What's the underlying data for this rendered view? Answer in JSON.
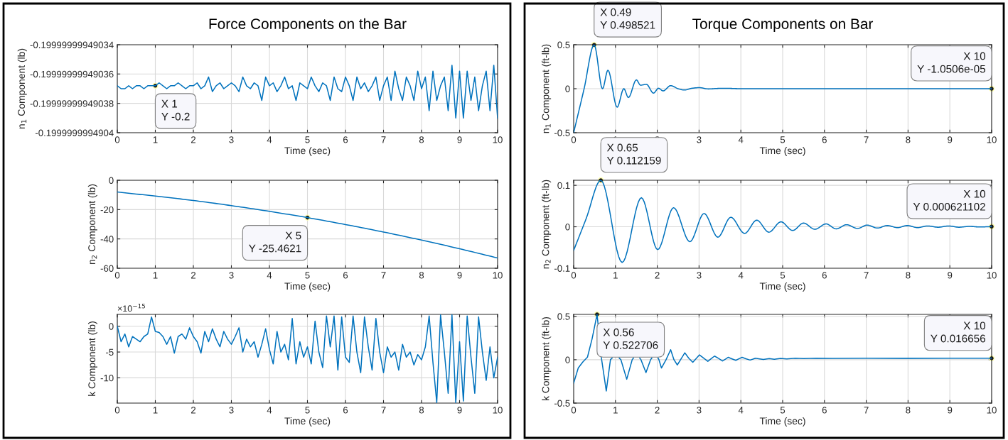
{
  "chart_data": [
    {
      "type": "line",
      "title": "Force Components on the Bar",
      "xlabel": "Time (sec)",
      "ylabel": "n$_{1}$ Component (lb)",
      "color": "#0072bd",
      "grid": true,
      "xlim": [
        0,
        10
      ],
      "xticks": [
        0,
        1,
        2,
        3,
        4,
        5,
        6,
        7,
        8,
        9,
        10
      ],
      "ylim": [
        -0.1999999994904,
        -0.19999999949034
      ],
      "yticks": [
        {
          "value": -0.1999999994904,
          "label": "-0.1999999994904"
        },
        {
          "value": -0.19999999949038,
          "label": "-0.19999999949038"
        },
        {
          "value": -0.19999999949036,
          "label": "-0.19999999949036"
        },
        {
          "value": -0.19999999949034,
          "label": "-0.19999999949034"
        }
      ],
      "x": [
        0,
        0.1,
        0.2,
        0.3,
        0.4,
        0.5,
        0.6,
        0.7,
        0.8,
        0.9,
        1,
        1.1,
        1.2,
        1.3,
        1.4,
        1.5,
        1.6,
        1.7,
        1.8,
        1.9,
        2,
        2.1,
        2.2,
        2.3,
        2.4,
        2.5,
        2.6,
        2.7,
        2.8,
        2.9,
        3,
        3.1,
        3.2,
        3.3,
        3.4,
        3.5,
        3.6,
        3.7,
        3.8,
        3.9,
        4,
        4.1,
        4.2,
        4.3,
        4.4,
        4.5,
        4.6,
        4.7,
        4.8,
        4.9,
        5,
        5.1,
        5.2,
        5.3,
        5.4,
        5.5,
        5.6,
        5.7,
        5.8,
        5.9,
        6,
        6.1,
        6.2,
        6.3,
        6.4,
        6.5,
        6.6,
        6.7,
        6.8,
        6.9,
        7,
        7.1,
        7.2,
        7.3,
        7.4,
        7.5,
        7.6,
        7.7,
        7.8,
        7.9,
        8,
        8.1,
        8.2,
        8.3,
        8.4,
        8.5,
        8.6,
        8.7,
        8.8,
        8.9,
        9,
        9.1,
        9.2,
        9.3,
        9.4,
        9.5,
        9.6,
        9.7,
        9.8,
        9.9,
        10
      ],
      "values": [
        -0.199999999490368,
        -0.19999999949037,
        -0.19999999949037,
        -0.199999999490368,
        -0.19999999949037,
        -0.199999999490368,
        -0.199999999490368,
        -0.19999999949037,
        -0.199999999490368,
        -0.199999999490368,
        -0.199999999490368,
        -0.199999999490366,
        -0.199999999490368,
        -0.19999999949037,
        -0.199999999490368,
        -0.199999999490368,
        -0.199999999490366,
        -0.199999999490368,
        -0.19999999949037,
        -0.199999999490368,
        -0.199999999490368,
        -0.199999999490366,
        -0.19999999949037,
        -0.199999999490368,
        -0.199999999490362,
        -0.199999999490372,
        -0.199999999490368,
        -0.199999999490366,
        -0.19999999949037,
        -0.199999999490368,
        -0.199999999490366,
        -0.199999999490368,
        -0.199999999490372,
        -0.199999999490362,
        -0.199999999490368,
        -0.19999999949037,
        -0.199999999490366,
        -0.199999999490368,
        -0.199999999490378,
        -0.199999999490362,
        -0.199999999490368,
        -0.199999999490366,
        -0.199999999490372,
        -0.199999999490368,
        -0.199999999490362,
        -0.19999999949037,
        -0.199999999490368,
        -0.199999999490378,
        -0.199999999490366,
        -0.199999999490368,
        -0.19999999949037,
        -0.199999999490362,
        -0.199999999490368,
        -0.199999999490372,
        -0.199999999490366,
        -0.199999999490368,
        -0.199999999490378,
        -0.199999999490362,
        -0.19999999949037,
        -0.199999999490372,
        -0.199999999490362,
        -0.199999999490368,
        -0.199999999490378,
        -0.199999999490362,
        -0.19999999949037,
        -0.199999999490366,
        -0.199999999490372,
        -0.199999999490368,
        -0.199999999490362,
        -0.199999999490378,
        -0.199999999490368,
        -0.199999999490362,
        -0.199999999490378,
        -0.199999999490358,
        -0.19999999949037,
        -0.199999999490378,
        -0.199999999490362,
        -0.199999999490368,
        -0.199999999490378,
        -0.199999999490358,
        -0.19999999949037,
        -0.199999999490362,
        -0.199999999490385,
        -0.199999999490358,
        -0.199999999490378,
        -0.199999999490368,
        -0.199999999490362,
        -0.199999999490385,
        -0.199999999490354,
        -0.19999999949039,
        -0.199999999490358,
        -0.19999999949039,
        -0.199999999490358,
        -0.199999999490378,
        -0.199999999490362,
        -0.199999999490385,
        -0.199999999490368,
        -0.199999999490358,
        -0.199999999490385,
        -0.199999999490354,
        -0.19999999949039
      ],
      "annotations": [
        {
          "text": "X 1\nY -0.2",
          "x": 1,
          "y": -0.199999999490368
        }
      ]
    },
    {
      "type": "line",
      "xlabel": "Time (sec)",
      "ylabel": "n$_{2}$ Component (lb)",
      "color": "#0072bd",
      "grid": true,
      "xlim": [
        0,
        10
      ],
      "xticks": [
        0,
        1,
        2,
        3,
        4,
        5,
        6,
        7,
        8,
        9,
        10
      ],
      "ylim": [
        -60,
        0
      ],
      "yticks": [
        -60,
        -40,
        -20,
        0
      ],
      "x": [
        0,
        1,
        2,
        3,
        4,
        5,
        6,
        7,
        8,
        9,
        10
      ],
      "values": [
        -8,
        -10.8,
        -13.8,
        -17.3,
        -21.2,
        -25.4621,
        -30.2,
        -35.3,
        -40.8,
        -46.7,
        -53
      ],
      "annotations": [
        {
          "text": "X 5\nY -25.4621",
          "x": 5,
          "y": -25.4621
        }
      ]
    },
    {
      "type": "line",
      "xlabel": "Time (sec)",
      "ylabel": "k Component (lb)",
      "color": "#0072bd",
      "grid": true,
      "xlim": [
        0,
        10
      ],
      "xticks": [
        0,
        1,
        2,
        3,
        4,
        5,
        6,
        7,
        8,
        9,
        10
      ],
      "ylim": [
        -14.9,
        2.3
      ],
      "yticks": [
        -10,
        -5,
        0
      ],
      "x": [
        0,
        0.1,
        0.2,
        0.3,
        0.4,
        0.5,
        0.6,
        0.7,
        0.8,
        0.9,
        1,
        1.1,
        1.2,
        1.3,
        1.4,
        1.5,
        1.6,
        1.7,
        1.8,
        1.9,
        2,
        2.1,
        2.2,
        2.3,
        2.4,
        2.5,
        2.6,
        2.7,
        2.8,
        2.9,
        3,
        3.1,
        3.2,
        3.3,
        3.4,
        3.5,
        3.6,
        3.7,
        3.8,
        3.9,
        4,
        4.1,
        4.2,
        4.3,
        4.4,
        4.5,
        4.6,
        4.7,
        4.8,
        4.9,
        5,
        5.1,
        5.2,
        5.3,
        5.4,
        5.5,
        5.6,
        5.7,
        5.8,
        5.9,
        6,
        6.1,
        6.2,
        6.3,
        6.4,
        6.5,
        6.6,
        6.7,
        6.8,
        6.9,
        7,
        7.1,
        7.2,
        7.3,
        7.4,
        7.5,
        7.6,
        7.7,
        7.8,
        7.9,
        8,
        8.1,
        8.2,
        8.3,
        8.4,
        8.5,
        8.6,
        8.7,
        8.8,
        8.9,
        9,
        9.1,
        9.2,
        9.3,
        9.4,
        9.5,
        9.6,
        9.7,
        9.8,
        9.9,
        10
      ],
      "values": [
        0,
        -3,
        -1.5,
        -4,
        -2,
        -2.5,
        -3,
        -2,
        -1.5,
        1.8,
        -1,
        -1.2,
        -2,
        -3.5,
        -2,
        -5.2,
        -2,
        -1.5,
        -2.5,
        -0.3,
        -2,
        -3,
        -5.2,
        -1,
        -3,
        -0.5,
        -2.5,
        -4,
        -1,
        -2.5,
        -3.5,
        -2,
        -0.3,
        -5,
        -2.5,
        -4,
        -3,
        -6,
        -3.5,
        -0.5,
        -4.5,
        -7.3,
        -1,
        -5,
        -3.5,
        -6.5,
        1.5,
        -7.3,
        -3,
        -6,
        -4,
        -7.3,
        1,
        -5,
        -8,
        2,
        -4,
        2,
        -8.5,
        1.8,
        -6,
        -7,
        2,
        -5,
        -9,
        1.8,
        -4,
        -8.5,
        1.5,
        -5,
        -9,
        -4,
        -6,
        -5,
        -8.5,
        -3.5,
        -6,
        -5,
        -7.5,
        -5.5,
        -6.5,
        -4,
        2,
        -7,
        -14.8,
        2.2,
        -5,
        -13,
        2.2,
        -14.8,
        -3,
        -14.5,
        2,
        -6,
        -13,
        1.8,
        -5,
        -10.5,
        -4,
        -10,
        -6
      ],
      "annotations": [
        "×10$^{−15}$"
      ]
    },
    {
      "type": "line",
      "title": "Torque Components on Bar",
      "xlabel": "Time (sec)",
      "ylabel": "n$_{1}$ Component (ft-lb)",
      "color": "#0072bd",
      "grid": true,
      "xlim": [
        0,
        10
      ],
      "xticks": [
        0,
        1,
        2,
        3,
        4,
        5,
        6,
        7,
        8,
        9,
        10
      ],
      "ylim": [
        -0.5,
        0.5
      ],
      "yticks": [
        -0.5,
        0,
        0.5
      ],
      "x": [
        0,
        0.25,
        0.49,
        0.69,
        0.82,
        1.04,
        1.2,
        1.31,
        1.5,
        1.6,
        1.74,
        1.91,
        2.03,
        2.14,
        2.32,
        2.5,
        2.65,
        2.83,
        3.01,
        3.23,
        3.45,
        3.66,
        4,
        5,
        6,
        8,
        10
      ],
      "values": [
        -0.5,
        0,
        0.498521,
        0,
        0.21,
        -0.21,
        0,
        -0.1,
        0.1,
        0.04,
        0.05,
        -0.05,
        0.005,
        -0.025,
        0.035,
        0,
        -0.015,
        0.005,
        0.012,
        -0.003,
        0.003,
        0.004,
        0,
        0,
        0,
        0,
        -1.0506e-05
      ],
      "annotations": [
        {
          "text": "X 0.49\nY 0.498521",
          "x": 0.49,
          "y": 0.498521
        },
        {
          "text": "X 10\nY -1.0506e-05",
          "x": 10,
          "y": -1.0506e-05
        }
      ]
    },
    {
      "type": "line",
      "xlabel": "Time (sec)",
      "ylabel": "n$_{2}$ Component (ft-lb)",
      "color": "#0072bd",
      "grid": true,
      "xlim": [
        0,
        10
      ],
      "xticks": [
        0,
        1,
        2,
        3,
        4,
        5,
        6,
        7,
        8,
        9,
        10
      ],
      "ylim": [
        -0.1,
        0.1122
      ],
      "yticks": [
        -0.1,
        0,
        0.1
      ],
      "x": [
        0,
        0.3,
        0.65,
        1.16,
        1.62,
        2.01,
        2.39,
        2.78,
        3.12,
        3.45,
        3.76,
        4.09,
        4.38,
        4.67,
        4.96,
        5.24,
        5.5,
        5.77,
        6.04,
        6.28,
        6.53,
        6.79,
        7.02,
        7.27,
        7.5,
        7.75,
        7.98,
        8.23,
        8.47,
        8.72,
        8.97,
        9.22,
        9.47,
        9.72,
        10
      ],
      "values": [
        -0.057,
        0.02,
        0.112159,
        -0.086,
        0.07,
        -0.055,
        0.046,
        -0.036,
        0.032,
        -0.025,
        0.023,
        -0.016,
        0.016,
        -0.013,
        0.012,
        -0.009,
        0.009,
        -0.006,
        0.007,
        -0.005,
        0.005,
        -0.004,
        0.004,
        -0.003,
        0.003,
        -0.002,
        0.003,
        -0.002,
        0.002,
        -0.001,
        0.002,
        -0.001,
        0.001,
        -0.0005,
        0.000621102
      ],
      "annotations": [
        {
          "text": "X 0.65\nY 0.112159",
          "x": 0.65,
          "y": 0.112159
        },
        {
          "text": "X 10\nY 0.000621102",
          "x": 10,
          "y": 0.000621102
        }
      ]
    },
    {
      "type": "line",
      "xlabel": "Time (sec)",
      "ylabel": "k Component (ft-lb)",
      "color": "#0072bd",
      "grid": true,
      "xlim": [
        0,
        10
      ],
      "xticks": [
        0,
        1,
        2,
        3,
        4,
        5,
        6,
        7,
        8,
        9,
        10
      ],
      "ylim": [
        -0.5,
        0.5228
      ],
      "yticks": [
        -0.5,
        0,
        0.5
      ],
      "x": [
        0,
        0.11,
        0.22,
        0.33,
        0.44,
        0.56,
        0.67,
        0.78,
        0.88,
        0.92,
        1,
        1.09,
        1.13,
        1.27,
        1.4,
        1.43,
        1.5,
        1.58,
        1.61,
        1.73,
        1.84,
        1.87,
        1.95,
        2.02,
        2.04,
        2.1,
        2.21,
        2.32,
        2.4,
        2.48,
        2.57,
        2.66,
        2.75,
        2.85,
        2.93,
        3.01,
        3.11,
        3.21,
        3.29,
        3.37,
        3.47,
        3.56,
        3.63,
        3.7,
        3.79,
        3.88,
        3.95,
        4.03,
        4.12,
        4.22,
        4.29,
        4.35,
        4.45,
        4.54,
        4.68,
        4.8,
        4.95,
        5.1,
        5.3,
        5.5,
        5.8,
        6.2,
        7,
        8,
        9,
        10
      ],
      "values": [
        -0.27,
        -0.095,
        -0.025,
        0.03,
        0.24,
        0.522706,
        0,
        -0.36,
        0,
        0.02,
        null,
        0.02,
        0,
        -0.225,
        0,
        0.02,
        null,
        0.02,
        0,
        -0.148,
        0,
        0.02,
        null,
        0.02,
        0,
        -0.095,
        0,
        0.116,
        0,
        -0.06,
        0.01,
        0.08,
        0.02,
        -0.03,
        0.013,
        0.056,
        0.018,
        -0.018,
        0.012,
        0.042,
        0.014,
        -0.014,
        0.007,
        0.028,
        0.01,
        -0.007,
        0.01,
        0.028,
        0.012,
        -0.004,
        0.007,
        0.018,
        0.01,
        0.0035,
        0.014,
        0.006,
        0.015,
        0.01,
        0.017,
        0.013,
        0.017,
        0.015,
        0.0168,
        0.0166,
        0.0167,
        0.016656
      ],
      "annotations": [
        {
          "text": "X 0.56\nY 0.522706",
          "x": 0.56,
          "y": 0.522706
        },
        {
          "text": "X 10\nY 0.016656",
          "x": 10,
          "y": 0.016656
        }
      ]
    }
  ]
}
